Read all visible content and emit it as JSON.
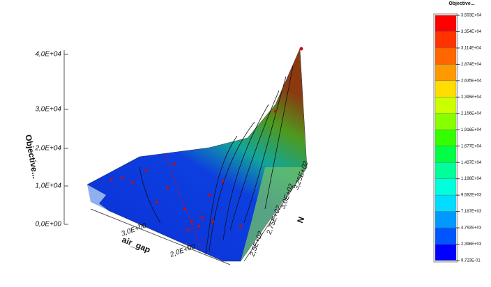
{
  "chart_data": {
    "type": "surface3d",
    "title": "Objective...",
    "xlabel": "air_gap",
    "ylabel": "N",
    "zlabel": "Objective...",
    "xticks": [
      {
        "value": 3,
        "label": "3,0E+00"
      },
      {
        "value": 2,
        "label": "2,0E+00"
      }
    ],
    "yticks": [
      {
        "value": 250,
        "label": "2,5E+02"
      },
      {
        "value": 275,
        "label": "2,75E+02"
      },
      {
        "value": 300,
        "label": "3,0E+02"
      },
      {
        "value": 325,
        "label": "3,25E+02"
      }
    ],
    "zticks": [
      {
        "value": 40000,
        "label": "4,0E+04"
      },
      {
        "value": 30000,
        "label": "3,0E+04"
      },
      {
        "value": 20000,
        "label": "2,0E+04"
      },
      {
        "value": 10000,
        "label": "1,0E+04"
      },
      {
        "value": 0,
        "label": "0,0E+00"
      }
    ],
    "colorbar": {
      "ticks": [
        {
          "value": 35930,
          "label": "3,593E+04"
        },
        {
          "value": 33540,
          "label": "3,354E+04"
        },
        {
          "value": 31140,
          "label": "3,114E+04"
        },
        {
          "value": 28740,
          "label": "2,874E+04"
        },
        {
          "value": 26350,
          "label": "2,635E+04"
        },
        {
          "value": 23950,
          "label": "2,395E+04"
        },
        {
          "value": 21560,
          "label": "2,156E+04"
        },
        {
          "value": 19160,
          "label": "1,916E+04"
        },
        {
          "value": 16770,
          "label": "1,677E+04"
        },
        {
          "value": 14370,
          "label": "1,437E+04"
        },
        {
          "value": 11980,
          "label": "1,198E+04"
        },
        {
          "value": 9582,
          "label": "9,582E+03"
        },
        {
          "value": 7187,
          "label": "7,187E+03"
        },
        {
          "value": 4792,
          "label": "4,792E+03"
        },
        {
          "value": 2396,
          "label": "2,396E+03"
        },
        {
          "value": 0.9723,
          "label": "9,723E-01"
        }
      ],
      "colors": [
        "#ff0000",
        "#ff3300",
        "#ff6600",
        "#ff9900",
        "#ffdd00",
        "#ccff00",
        "#88ff00",
        "#33ff00",
        "#00ff44",
        "#00ff99",
        "#00ffdd",
        "#00ddff",
        "#0099ff",
        "#0055ff",
        "#0000ff"
      ]
    }
  }
}
